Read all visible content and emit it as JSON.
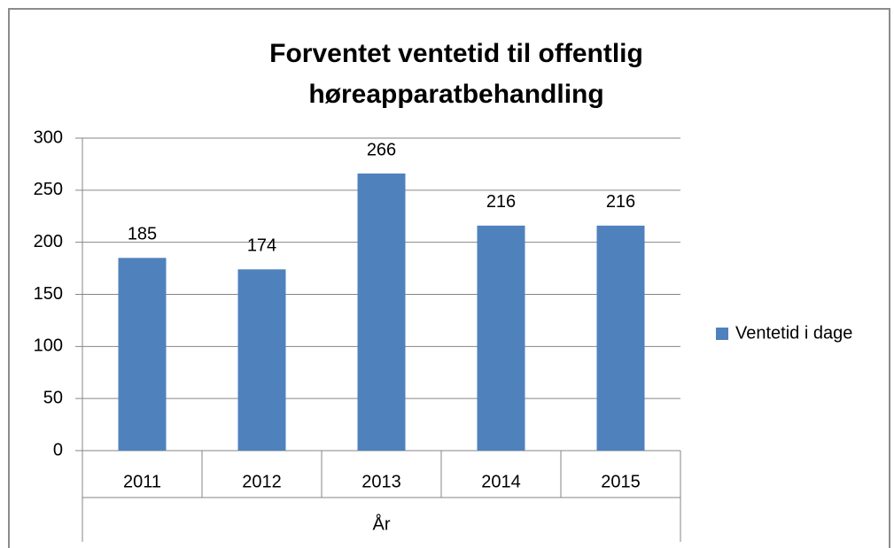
{
  "chart_data": {
    "type": "bar",
    "title": "Forventet ventetid til offentlig høreapparatbehandling",
    "x_label": "År",
    "categories": [
      "2011",
      "2012",
      "2013",
      "2014",
      "2015"
    ],
    "series": [
      {
        "name": "Ventetid i dage",
        "color": "#4f81bd",
        "values": [
          185,
          174,
          266,
          216,
          216
        ]
      }
    ],
    "ylim": [
      0,
      300
    ],
    "yticks": [
      0,
      50,
      100,
      150,
      200,
      250,
      300
    ],
    "grid": true,
    "legend": "right",
    "data_labels": true
  }
}
